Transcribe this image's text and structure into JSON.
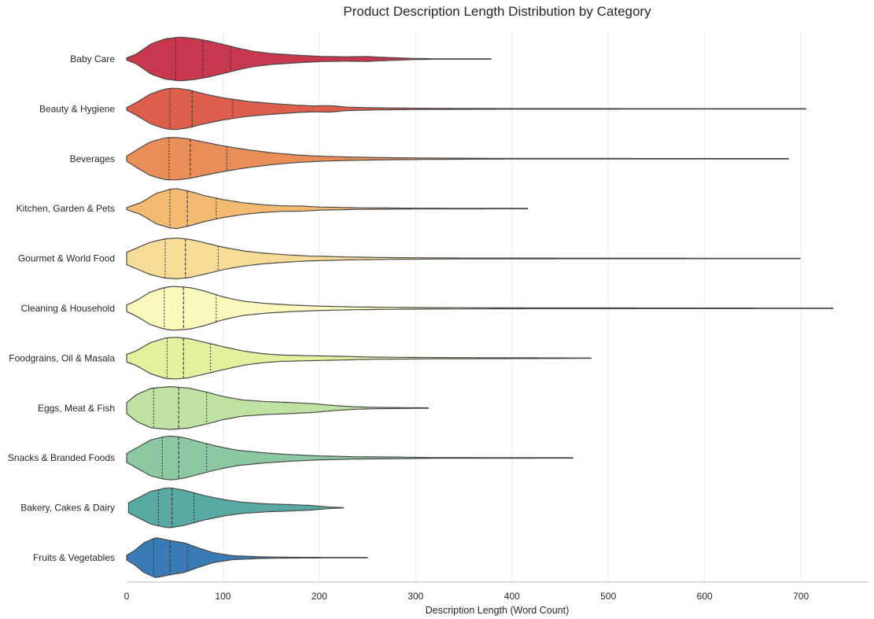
{
  "chart_data": {
    "type": "violin",
    "title": "Product Description Length Distribution by Category",
    "xlabel": "Description Length (Word Count)",
    "ylabel": "",
    "xlim": [
      0,
      770
    ],
    "x_ticks": [
      0,
      100,
      200,
      300,
      400,
      500,
      600,
      700
    ],
    "grid": "vertical",
    "inner": "quartile",
    "orientation": "horizontal",
    "categories": [
      "Baby Care",
      "Beauty & Hygiene",
      "Beverages",
      "Kitchen, Garden & Pets",
      "Gourmet & World Food",
      "Cleaning & Household",
      "Foodgrains, Oil & Masala",
      "Eggs, Meat & Fish",
      "Snacks & Branded Foods",
      "Bakery, Cakes & Dairy",
      "Fruits & Vegetables"
    ],
    "colors": [
      "#c9374c",
      "#dd5f4b",
      "#ea8e58",
      "#f3bb72",
      "#f6dc96",
      "#fbf8bb",
      "#e4f09e",
      "#bfe2a2",
      "#8cc9a3",
      "#58a8a4",
      "#3a7bb5"
    ],
    "series": [
      {
        "name": "Baby Care",
        "min": 0,
        "max": 378,
        "q1": 51,
        "median": 79,
        "q3": 108,
        "peak": 55,
        "half_width": 0.44,
        "profile": [
          [
            0,
            0.05
          ],
          [
            10,
            0.22
          ],
          [
            25,
            0.68
          ],
          [
            40,
            0.92
          ],
          [
            55,
            1.0
          ],
          [
            70,
            0.94
          ],
          [
            85,
            0.82
          ],
          [
            100,
            0.67
          ],
          [
            115,
            0.5
          ],
          [
            130,
            0.36
          ],
          [
            150,
            0.25
          ],
          [
            175,
            0.18
          ],
          [
            200,
            0.12
          ],
          [
            225,
            0.1
          ],
          [
            250,
            0.11
          ],
          [
            270,
            0.07
          ],
          [
            295,
            0.03
          ],
          [
            320,
            0.01
          ],
          [
            378,
            0.01
          ]
        ]
      },
      {
        "name": "Beauty & Hygiene",
        "min": 0,
        "max": 705,
        "q1": 45,
        "median": 68,
        "q3": 110,
        "peak": 50,
        "half_width": 0.42,
        "profile": [
          [
            0,
            0.06
          ],
          [
            10,
            0.3
          ],
          [
            25,
            0.72
          ],
          [
            40,
            0.95
          ],
          [
            50,
            1.0
          ],
          [
            65,
            0.9
          ],
          [
            80,
            0.72
          ],
          [
            100,
            0.53
          ],
          [
            125,
            0.36
          ],
          [
            150,
            0.26
          ],
          [
            175,
            0.18
          ],
          [
            195,
            0.14
          ],
          [
            210,
            0.16
          ],
          [
            230,
            0.08
          ],
          [
            260,
            0.05
          ],
          [
            300,
            0.03
          ],
          [
            400,
            0.015
          ],
          [
            705,
            0.01
          ]
        ]
      },
      {
        "name": "Beverages",
        "min": 0,
        "max": 687,
        "q1": 44,
        "median": 66,
        "q3": 104,
        "peak": 48,
        "half_width": 0.43,
        "profile": [
          [
            0,
            0.12
          ],
          [
            10,
            0.4
          ],
          [
            25,
            0.8
          ],
          [
            40,
            0.97
          ],
          [
            50,
            1.0
          ],
          [
            65,
            0.92
          ],
          [
            80,
            0.78
          ],
          [
            100,
            0.6
          ],
          [
            125,
            0.42
          ],
          [
            150,
            0.28
          ],
          [
            175,
            0.18
          ],
          [
            200,
            0.12
          ],
          [
            230,
            0.08
          ],
          [
            270,
            0.05
          ],
          [
            320,
            0.03
          ],
          [
            400,
            0.015
          ],
          [
            687,
            0.01
          ]
        ]
      },
      {
        "name": "Kitchen, Garden & Pets",
        "min": 0,
        "max": 416,
        "q1": 45,
        "median": 63,
        "q3": 93,
        "peak": 50,
        "half_width": 0.4,
        "profile": [
          [
            0,
            0.05
          ],
          [
            15,
            0.3
          ],
          [
            30,
            0.75
          ],
          [
            45,
            0.97
          ],
          [
            52,
            1.0
          ],
          [
            65,
            0.87
          ],
          [
            80,
            0.66
          ],
          [
            100,
            0.45
          ],
          [
            120,
            0.3
          ],
          [
            140,
            0.2
          ],
          [
            160,
            0.14
          ],
          [
            180,
            0.13
          ],
          [
            200,
            0.08
          ],
          [
            240,
            0.04
          ],
          [
            300,
            0.02
          ],
          [
            416,
            0.01
          ]
        ]
      },
      {
        "name": "Gourmet & World Food",
        "min": 0,
        "max": 699,
        "q1": 40,
        "median": 61,
        "q3": 95,
        "peak": 52,
        "half_width": 0.41,
        "profile": [
          [
            0,
            0.3
          ],
          [
            10,
            0.5
          ],
          [
            25,
            0.8
          ],
          [
            40,
            0.96
          ],
          [
            52,
            1.0
          ],
          [
            65,
            0.94
          ],
          [
            80,
            0.78
          ],
          [
            100,
            0.55
          ],
          [
            120,
            0.38
          ],
          [
            140,
            0.27
          ],
          [
            165,
            0.18
          ],
          [
            190,
            0.12
          ],
          [
            230,
            0.07
          ],
          [
            280,
            0.04
          ],
          [
            350,
            0.02
          ],
          [
            699,
            0.01
          ]
        ]
      },
      {
        "name": "Cleaning & Household",
        "min": 0,
        "max": 733,
        "q1": 39,
        "median": 59,
        "q3": 93,
        "peak": 50,
        "half_width": 0.44,
        "profile": [
          [
            0,
            0.15
          ],
          [
            10,
            0.35
          ],
          [
            25,
            0.75
          ],
          [
            40,
            0.96
          ],
          [
            50,
            1.0
          ],
          [
            65,
            0.95
          ],
          [
            80,
            0.8
          ],
          [
            100,
            0.52
          ],
          [
            120,
            0.33
          ],
          [
            145,
            0.22
          ],
          [
            170,
            0.15
          ],
          [
            200,
            0.1
          ],
          [
            240,
            0.06
          ],
          [
            300,
            0.035
          ],
          [
            400,
            0.02
          ],
          [
            733,
            0.01
          ]
        ]
      },
      {
        "name": "Foodgrains, Oil & Masala",
        "min": 0,
        "max": 482,
        "q1": 42,
        "median": 59,
        "q3": 87,
        "peak": 50,
        "half_width": 0.42,
        "profile": [
          [
            0,
            0.18
          ],
          [
            10,
            0.35
          ],
          [
            25,
            0.75
          ],
          [
            40,
            0.96
          ],
          [
            50,
            1.0
          ],
          [
            65,
            0.93
          ],
          [
            80,
            0.77
          ],
          [
            100,
            0.55
          ],
          [
            120,
            0.35
          ],
          [
            140,
            0.22
          ],
          [
            160,
            0.15
          ],
          [
            190,
            0.12
          ],
          [
            220,
            0.09
          ],
          [
            260,
            0.05
          ],
          [
            320,
            0.03
          ],
          [
            482,
            0.01
          ]
        ]
      },
      {
        "name": "Eggs, Meat & Fish",
        "min": 0,
        "max": 313,
        "q1": 28,
        "median": 54,
        "q3": 83,
        "peak": 45,
        "half_width": 0.43,
        "profile": [
          [
            0,
            0.25
          ],
          [
            10,
            0.62
          ],
          [
            25,
            0.92
          ],
          [
            45,
            1.0
          ],
          [
            65,
            0.93
          ],
          [
            85,
            0.72
          ],
          [
            100,
            0.54
          ],
          [
            120,
            0.38
          ],
          [
            145,
            0.3
          ],
          [
            170,
            0.26
          ],
          [
            195,
            0.2
          ],
          [
            215,
            0.12
          ],
          [
            235,
            0.06
          ],
          [
            260,
            0.03
          ],
          [
            313,
            0.01
          ]
        ]
      },
      {
        "name": "Snacks & Branded Foods",
        "min": 0,
        "max": 463,
        "q1": 37,
        "median": 54,
        "q3": 83,
        "peak": 46,
        "half_width": 0.44,
        "profile": [
          [
            0,
            0.2
          ],
          [
            10,
            0.45
          ],
          [
            25,
            0.82
          ],
          [
            40,
            0.98
          ],
          [
            47,
            1.0
          ],
          [
            60,
            0.92
          ],
          [
            75,
            0.74
          ],
          [
            95,
            0.52
          ],
          [
            115,
            0.35
          ],
          [
            140,
            0.24
          ],
          [
            170,
            0.15
          ],
          [
            200,
            0.09
          ],
          [
            240,
            0.05
          ],
          [
            280,
            0.04
          ],
          [
            310,
            0.02
          ],
          [
            463,
            0.01
          ]
        ]
      },
      {
        "name": "Bakery, Cakes & Dairy",
        "min": 2,
        "max": 225,
        "q1": 33,
        "median": 47,
        "q3": 70,
        "peak": 42,
        "half_width": 0.4,
        "profile": [
          [
            2,
            0.25
          ],
          [
            10,
            0.45
          ],
          [
            25,
            0.82
          ],
          [
            40,
            0.98
          ],
          [
            45,
            1.0
          ],
          [
            60,
            0.88
          ],
          [
            80,
            0.62
          ],
          [
            100,
            0.42
          ],
          [
            120,
            0.28
          ],
          [
            145,
            0.2
          ],
          [
            170,
            0.16
          ],
          [
            190,
            0.12
          ],
          [
            210,
            0.04
          ],
          [
            225,
            0.01
          ]
        ]
      },
      {
        "name": "Fruits & Vegetables",
        "min": 0,
        "max": 250,
        "q1": 28,
        "median": 45,
        "q3": 63,
        "peak": 32,
        "half_width": 0.4,
        "profile": [
          [
            0,
            0.12
          ],
          [
            8,
            0.35
          ],
          [
            18,
            0.75
          ],
          [
            30,
            1.0
          ],
          [
            45,
            0.86
          ],
          [
            60,
            0.74
          ],
          [
            75,
            0.48
          ],
          [
            90,
            0.25
          ],
          [
            110,
            0.1
          ],
          [
            140,
            0.04
          ],
          [
            170,
            0.02
          ],
          [
            220,
            0.01
          ],
          [
            250,
            0.01
          ]
        ]
      }
    ]
  }
}
